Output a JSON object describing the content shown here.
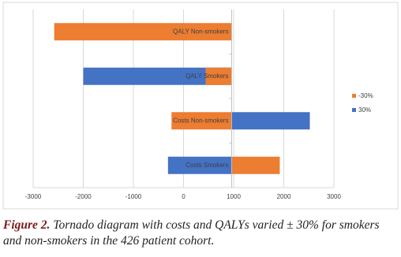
{
  "chart_data": {
    "type": "tornado",
    "categories": [
      "QALY Non-smokers",
      "QALY Smokers",
      "Costs Non-smokers",
      "Costs Smokers"
    ],
    "series": [
      {
        "name": "30%",
        "color": "#4472c4",
        "values": [
          null,
          -2000,
          2520,
          -310
        ]
      },
      {
        "name": "-30%",
        "color": "#ed7d31",
        "values": [
          -2580,
          440,
          -240,
          1920
        ]
      }
    ],
    "base": 960,
    "xlim": [
      -3000,
      3000
    ],
    "xticks": [
      -3000,
      -2000,
      -1000,
      0,
      1000,
      2000,
      3000
    ],
    "grid": true,
    "legend": "right"
  },
  "caption": {
    "label": "Figure 2.",
    "text": "Tornado diagram with costs and QALYs varied ± 30% for smokers and non-smokers in the 426 patient cohort."
  }
}
